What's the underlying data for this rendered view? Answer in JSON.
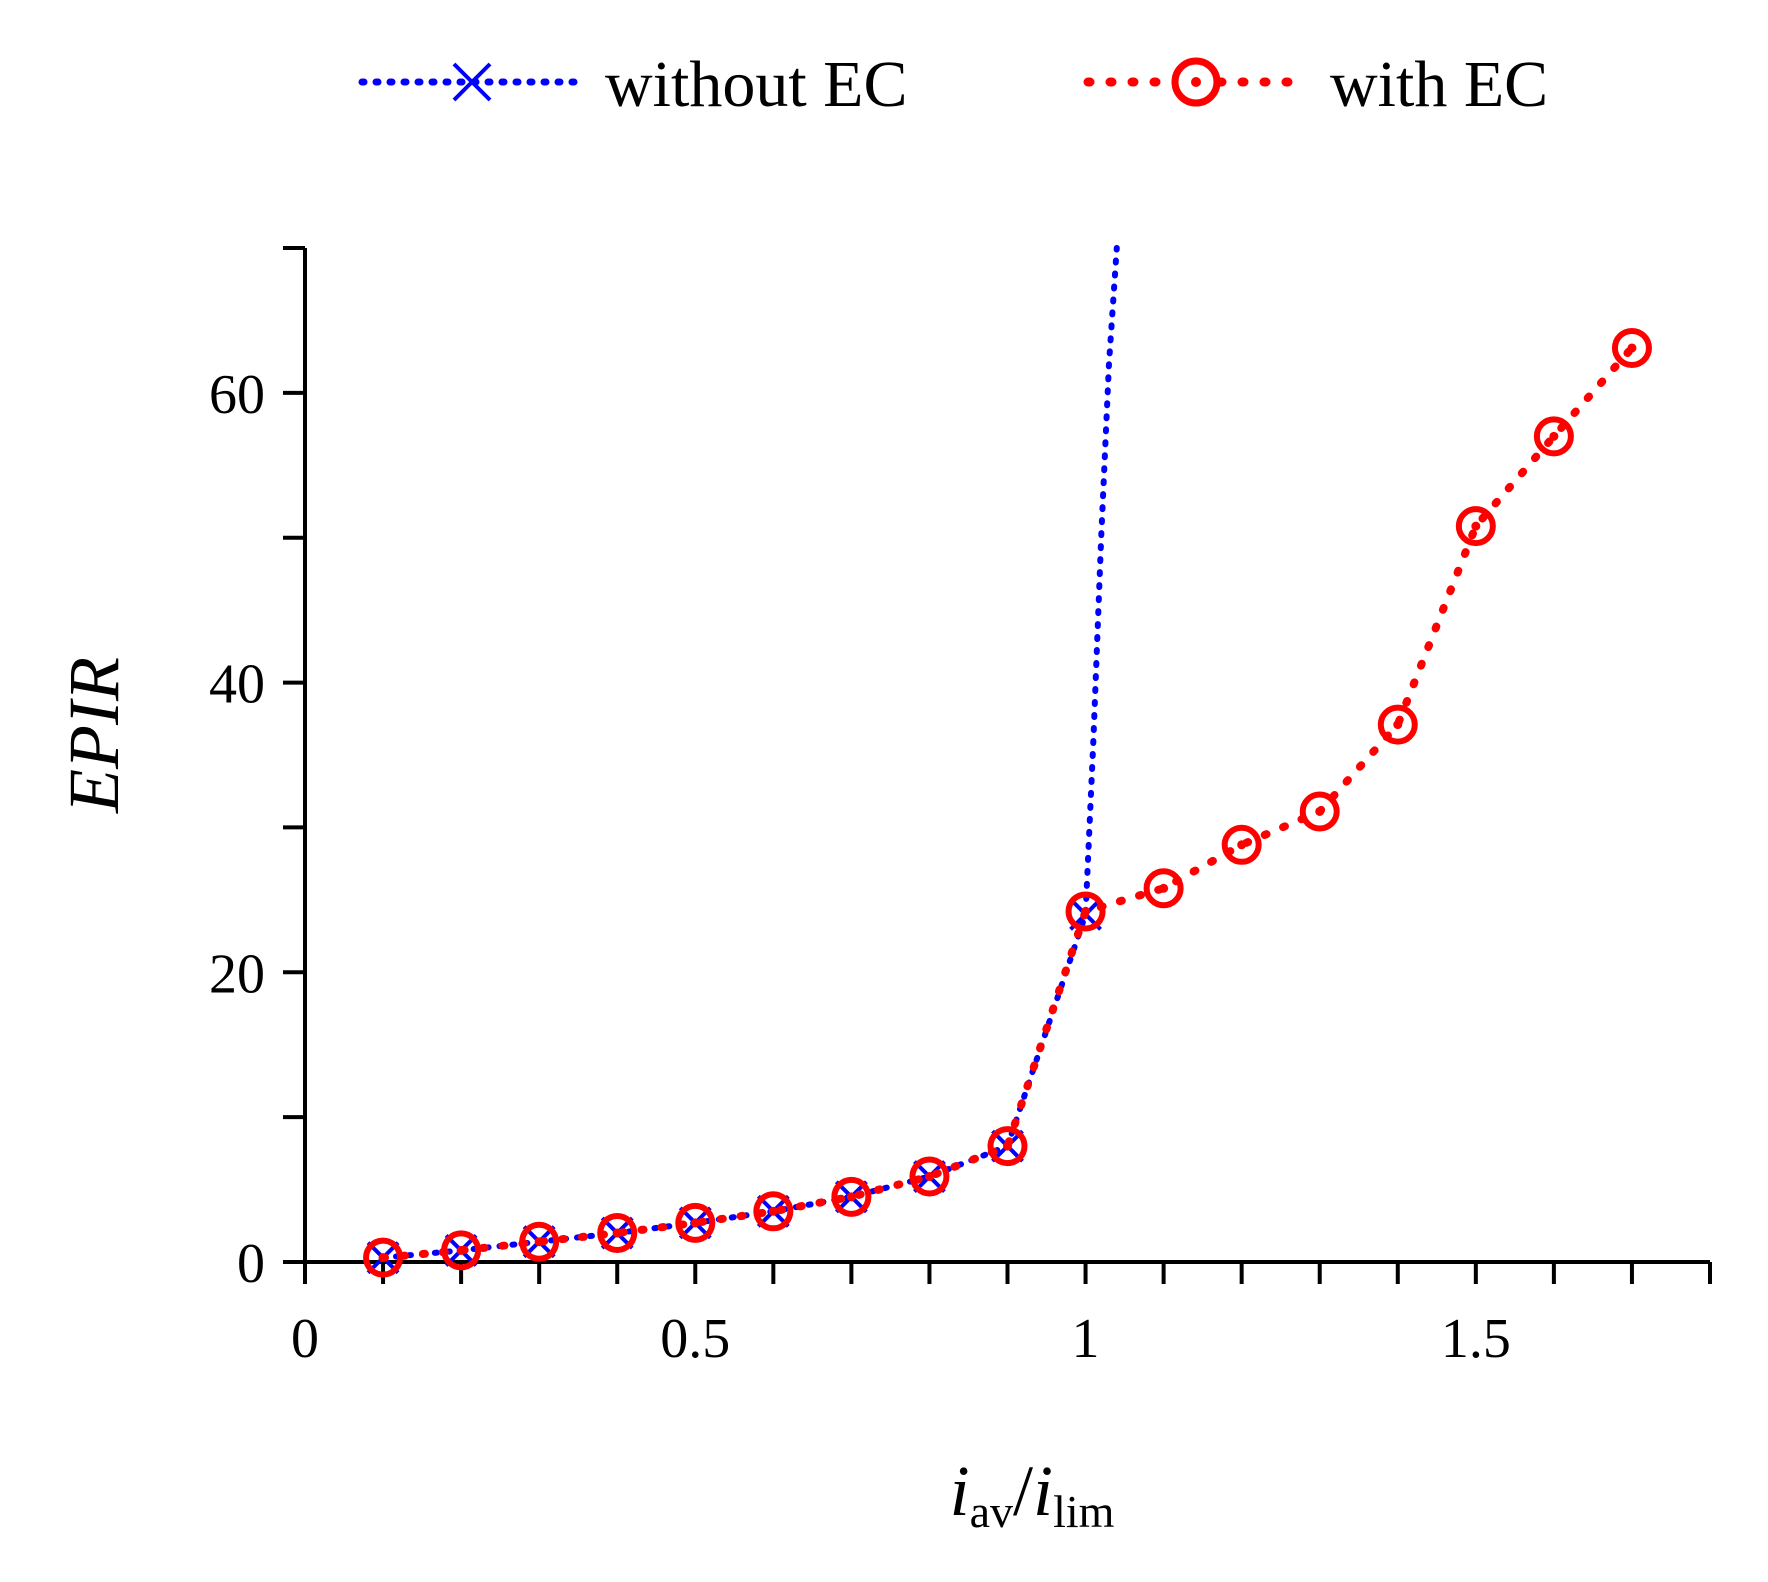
{
  "chart_data": {
    "type": "line",
    "title": "",
    "xlabel": {
      "main": "i",
      "sub1": "av",
      "sep": "/",
      "main2": "i",
      "sub2": "lim"
    },
    "ylabel": "EPIR",
    "xlim": [
      0,
      1.8
    ],
    "ylim": [
      0,
      70
    ],
    "xticks": [
      0,
      0.5,
      1,
      1.5
    ],
    "xtick_labels": [
      "0",
      "0.5",
      "1",
      "1.5"
    ],
    "xminor": [
      0.1,
      0.2,
      0.3,
      0.4,
      0.6,
      0.7,
      0.8,
      0.9,
      1.1,
      1.2,
      1.3,
      1.4,
      1.6,
      1.7
    ],
    "yticks": [
      0,
      20,
      40,
      60
    ],
    "ytick_labels": [
      "0",
      "20",
      "40",
      "60"
    ],
    "yminor": [
      10,
      30,
      50,
      70
    ],
    "legend_position": "top-center",
    "series": [
      {
        "name": "without EC",
        "color": "#0000ff",
        "marker": "x",
        "marker_x": [
          0.1,
          0.2,
          0.3,
          0.4,
          0.5,
          0.6,
          0.7,
          0.8,
          0.9,
          1.0
        ],
        "marker_y": [
          0.3,
          0.8,
          1.4,
          2.0,
          2.7,
          3.5,
          4.5,
          5.9,
          8.0,
          24.0
        ],
        "x": [
          0.1,
          0.2,
          0.3,
          0.4,
          0.5,
          0.6,
          0.7,
          0.8,
          0.9,
          1.0,
          1.01,
          1.02,
          1.03,
          1.04
        ],
        "y": [
          0.3,
          0.8,
          1.4,
          2.0,
          2.7,
          3.5,
          4.5,
          5.9,
          8.0,
          24.0,
          36,
          50,
          62,
          70
        ]
      },
      {
        "name": "with EC",
        "color": "#ff0000",
        "marker": "circle-dot",
        "x": [
          0.1,
          0.2,
          0.3,
          0.4,
          0.5,
          0.6,
          0.7,
          0.8,
          0.9,
          1.0,
          1.1,
          1.2,
          1.3,
          1.4,
          1.5,
          1.6,
          1.7
        ],
        "y": [
          0.3,
          0.8,
          1.4,
          2.0,
          2.7,
          3.5,
          4.5,
          5.9,
          8.0,
          24.2,
          25.8,
          28.8,
          31.1,
          37.1,
          50.8,
          57.0,
          63.1
        ]
      }
    ]
  }
}
